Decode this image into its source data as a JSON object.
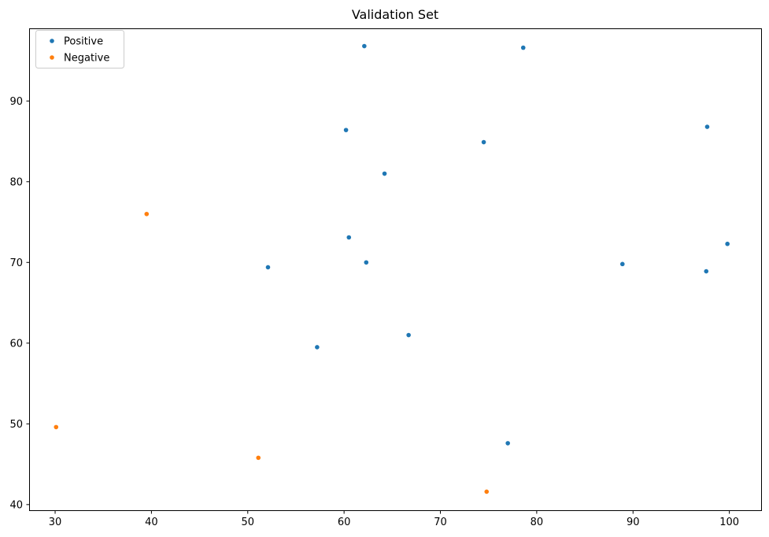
{
  "chart_data": {
    "type": "scatter",
    "title": "Validation Set",
    "xlabel": "",
    "ylabel": "",
    "xlim": [
      27.3,
      103.3
    ],
    "ylim": [
      39.3,
      99.0
    ],
    "x_ticks": [
      30,
      40,
      50,
      60,
      70,
      80,
      90,
      100
    ],
    "y_ticks": [
      40,
      50,
      60,
      70,
      80,
      90
    ],
    "grid": false,
    "legend_position": "top-left",
    "series": [
      {
        "name": "Positive",
        "color": "#1f77b4",
        "points": [
          {
            "x": 62.1,
            "y": 96.8
          },
          {
            "x": 78.6,
            "y": 96.6
          },
          {
            "x": 60.2,
            "y": 86.4
          },
          {
            "x": 74.5,
            "y": 84.9
          },
          {
            "x": 97.7,
            "y": 86.8
          },
          {
            "x": 64.2,
            "y": 81.0
          },
          {
            "x": 60.5,
            "y": 73.1
          },
          {
            "x": 62.3,
            "y": 70.0
          },
          {
            "x": 52.1,
            "y": 69.4
          },
          {
            "x": 88.9,
            "y": 69.8
          },
          {
            "x": 97.6,
            "y": 68.9
          },
          {
            "x": 99.8,
            "y": 72.3
          },
          {
            "x": 66.7,
            "y": 61.0
          },
          {
            "x": 57.2,
            "y": 59.5
          },
          {
            "x": 77.0,
            "y": 47.6
          }
        ]
      },
      {
        "name": "Negative",
        "color": "#ff7f0e",
        "points": [
          {
            "x": 39.5,
            "y": 76.0
          },
          {
            "x": 30.1,
            "y": 49.6
          },
          {
            "x": 51.1,
            "y": 45.8
          },
          {
            "x": 74.8,
            "y": 41.6
          }
        ]
      }
    ]
  }
}
